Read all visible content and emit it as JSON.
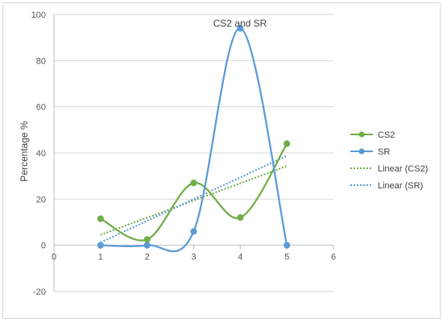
{
  "chart_data": {
    "type": "line",
    "title": "CS2 and SR",
    "xlabel": "",
    "ylabel": "Percentage %",
    "xlim": [
      0,
      6
    ],
    "ylim": [
      -20,
      100
    ],
    "x_ticks": [
      "0",
      "1",
      "2",
      "3",
      "4",
      "5",
      "6"
    ],
    "y_ticks": [
      "-20",
      "0",
      "20",
      "40",
      "60",
      "80",
      "100"
    ],
    "grid": "horizontal",
    "legend_position": "right",
    "x": [
      1,
      2,
      3,
      4,
      5
    ],
    "series": [
      {
        "name": "CS2",
        "color": "#70ad47",
        "style": "smooth-markers",
        "values": [
          11.5,
          2.5,
          27,
          12,
          44
        ]
      },
      {
        "name": "SR",
        "color": "#5b9bd5",
        "style": "smooth-markers",
        "values": [
          0,
          0,
          6,
          94,
          0
        ]
      }
    ],
    "trendlines": [
      {
        "name": "Linear (CS2)",
        "color": "#70ad47",
        "of": "CS2",
        "style": "dotted"
      },
      {
        "name": "Linear (SR)",
        "color": "#5b9bd5",
        "of": "SR",
        "style": "dotted"
      }
    ]
  }
}
